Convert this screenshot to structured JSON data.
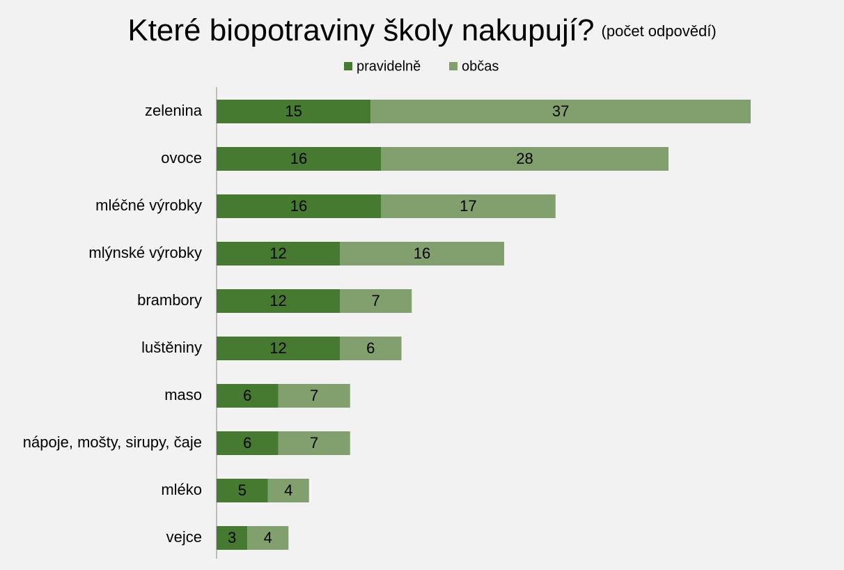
{
  "chart_data": {
    "type": "stacked-bar-horizontal",
    "title": "Které biopotraviny školy nakupují?",
    "subtitle": "(počet odpovědí)",
    "categories": [
      "zelenina",
      "ovoce",
      "mléčné výrobky",
      "mlýnské výrobky",
      "brambory",
      "luštěniny",
      "maso",
      "nápoje, mošty, sirupy, čaje",
      "mléko",
      "vejce"
    ],
    "series": [
      {
        "name": "pravidelně",
        "color": "#467a31",
        "values": [
          15,
          16,
          16,
          12,
          12,
          12,
          6,
          6,
          5,
          3
        ]
      },
      {
        "name": "občas",
        "color": "#82a06d",
        "values": [
          37,
          28,
          17,
          16,
          7,
          6,
          7,
          7,
          4,
          4
        ]
      }
    ],
    "legend": "top"
  }
}
